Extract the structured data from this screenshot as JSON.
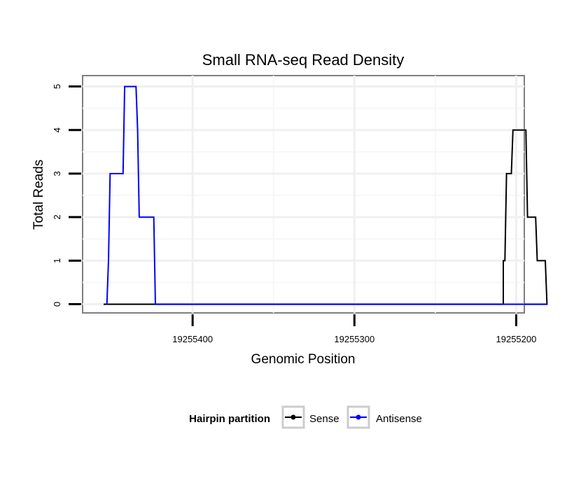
{
  "chart_data": {
    "type": "line",
    "title": "Small RNA-seq Read Density",
    "xlabel": "Genomic Position",
    "ylabel": "Total Reads",
    "xlim": [
      19255468,
      19255195
    ],
    "ylim": [
      -0.2,
      5.25
    ],
    "x_reversed": true,
    "xticks": [
      19255400,
      19255300,
      19255200
    ],
    "xtick_labels": [
      "19255400",
      "19255300",
      "19255200"
    ],
    "yticks": [
      0,
      1,
      2,
      3,
      4,
      5
    ],
    "ytick_labels": [
      "0",
      "1",
      "2",
      "3",
      "4",
      "5"
    ],
    "grid": true,
    "legend": {
      "title": "Hairpin partition",
      "placement": "bottom",
      "entries": [
        "Sense",
        "Antisense"
      ]
    },
    "series": [
      {
        "name": "Sense",
        "color": "#000000",
        "points": [
          [
            19255455,
            0
          ],
          [
            19255212,
            0
          ],
          [
            19255212,
            0
          ],
          [
            19255208,
            0
          ],
          [
            19255208,
            1
          ],
          [
            19255207,
            1
          ],
          [
            19255206,
            3
          ],
          [
            19255203,
            3
          ],
          [
            19255202,
            4
          ],
          [
            19255194,
            4
          ],
          [
            19255193,
            2
          ],
          [
            19255188,
            2
          ],
          [
            19255187,
            1
          ],
          [
            19255182,
            1
          ],
          [
            19255181,
            0
          ],
          [
            19255195,
            0
          ]
        ]
      },
      {
        "name": "Antisense",
        "color": "#0000ff",
        "points": [
          [
            19255453,
            0
          ],
          [
            19255452,
            1
          ],
          [
            19255451,
            3
          ],
          [
            19255443,
            3
          ],
          [
            19255442,
            5
          ],
          [
            19255435,
            5
          ],
          [
            19255434,
            4
          ],
          [
            19255433,
            2
          ],
          [
            19255424,
            2
          ],
          [
            19255423,
            0
          ],
          [
            19255181,
            0
          ],
          [
            19255195,
            0
          ],
          [
            19255208,
            0
          ]
        ]
      }
    ]
  }
}
